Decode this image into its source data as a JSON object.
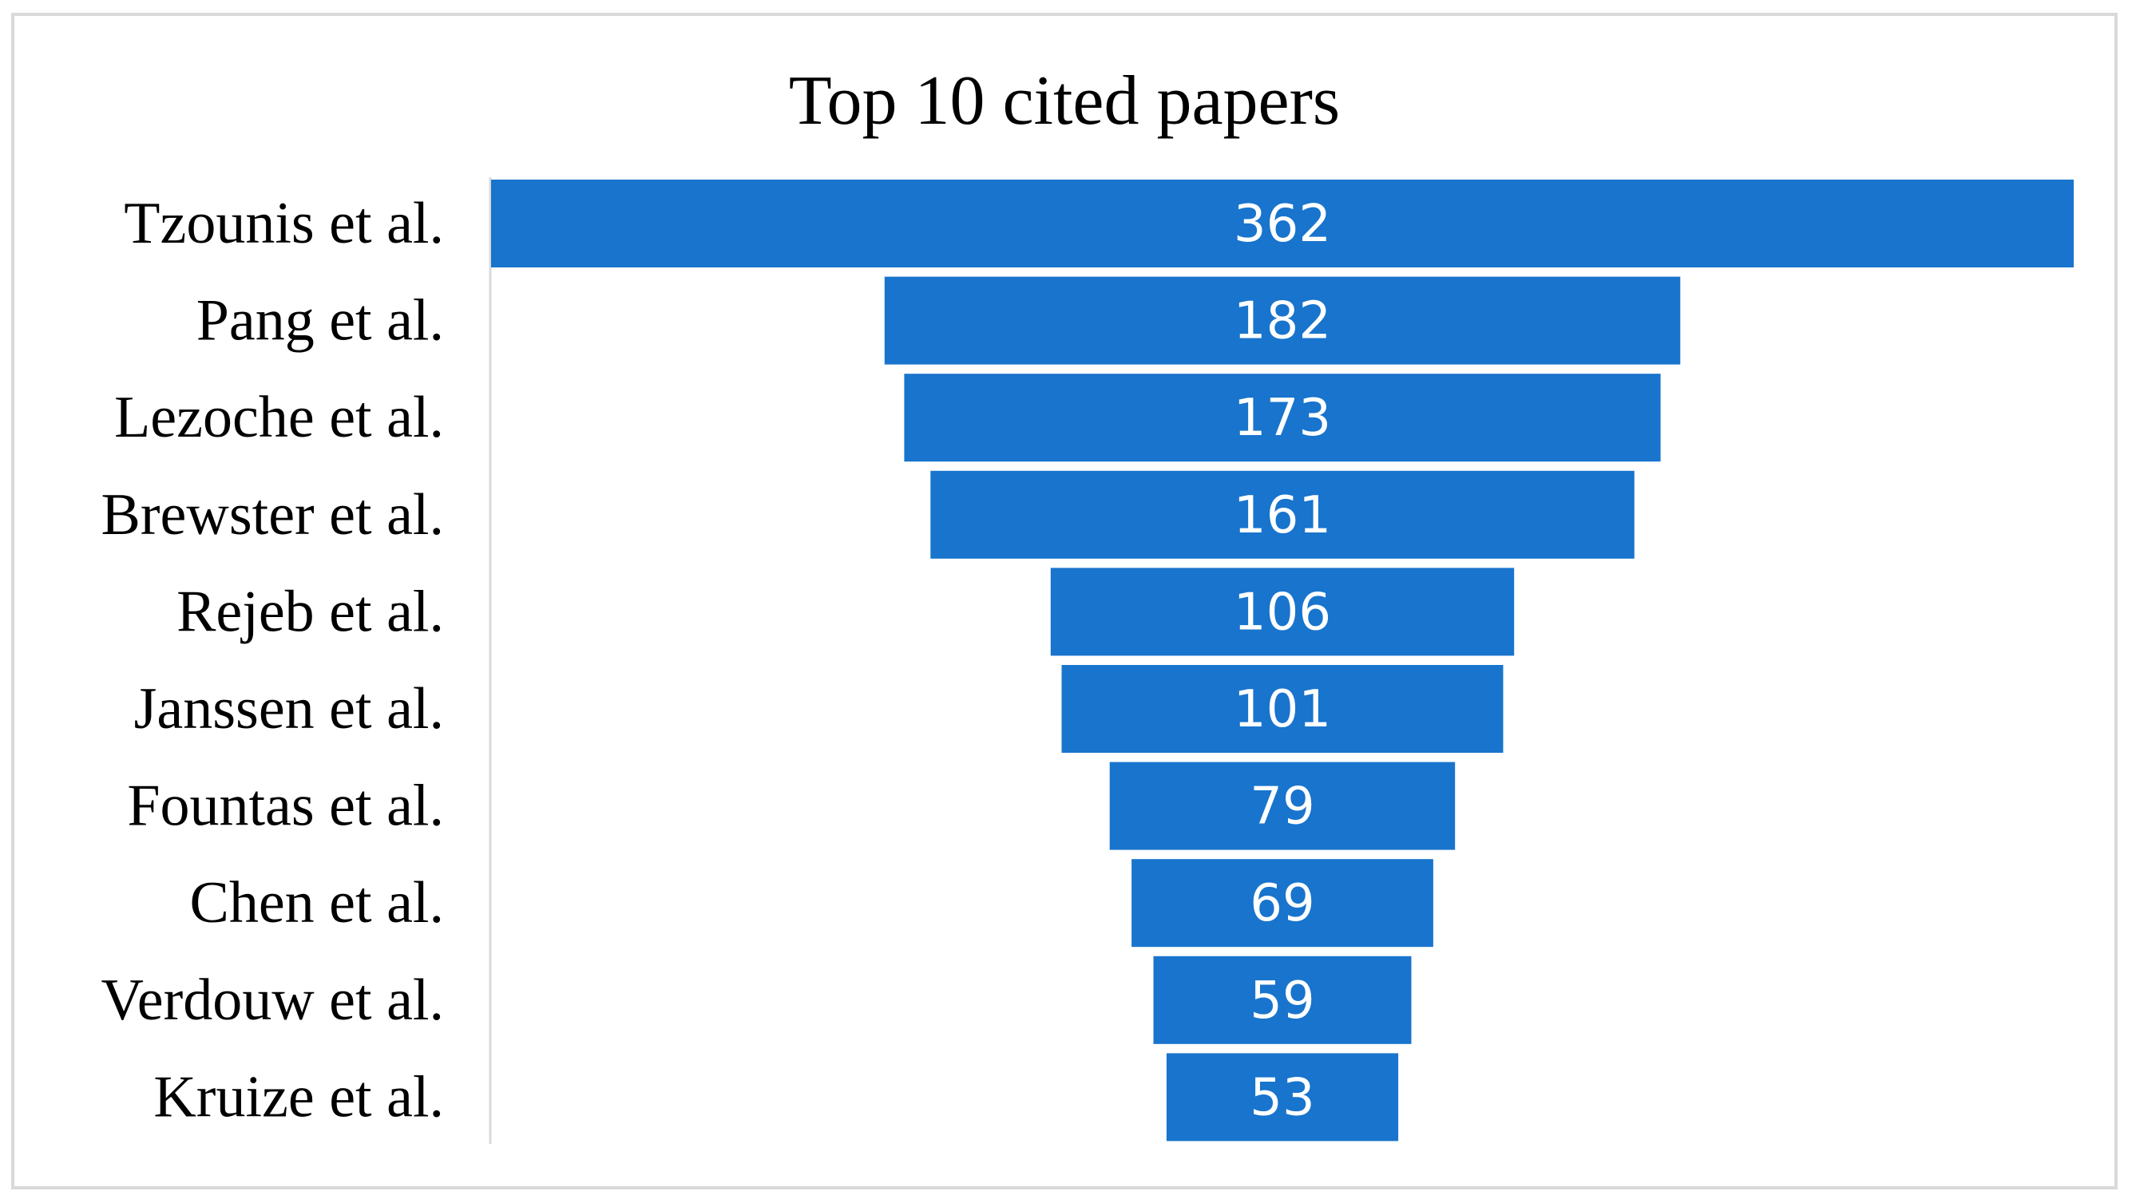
{
  "chart_data": {
    "type": "bar",
    "subtype": "funnel",
    "title": "Top 10 cited papers",
    "xlabel": "",
    "ylabel": "",
    "categories": [
      "Tzounis et al.",
      "Pang et al.",
      "Lezoche et al.",
      "Brewster et al.",
      "Rejeb et al.",
      "Janssen et al.",
      "Fountas et al.",
      "Chen et al.",
      "Verdouw et al.",
      "Kruize et al."
    ],
    "values": [
      362,
      182,
      173,
      161,
      106,
      101,
      79,
      69,
      59,
      53
    ],
    "data_labels": [
      "362",
      "182",
      "173",
      "161",
      "106",
      "101",
      "79",
      "69",
      "59",
      "53"
    ],
    "bar_color": "#1874CD",
    "label_color": "#FFFFFF",
    "legend": "none",
    "grid": false
  }
}
